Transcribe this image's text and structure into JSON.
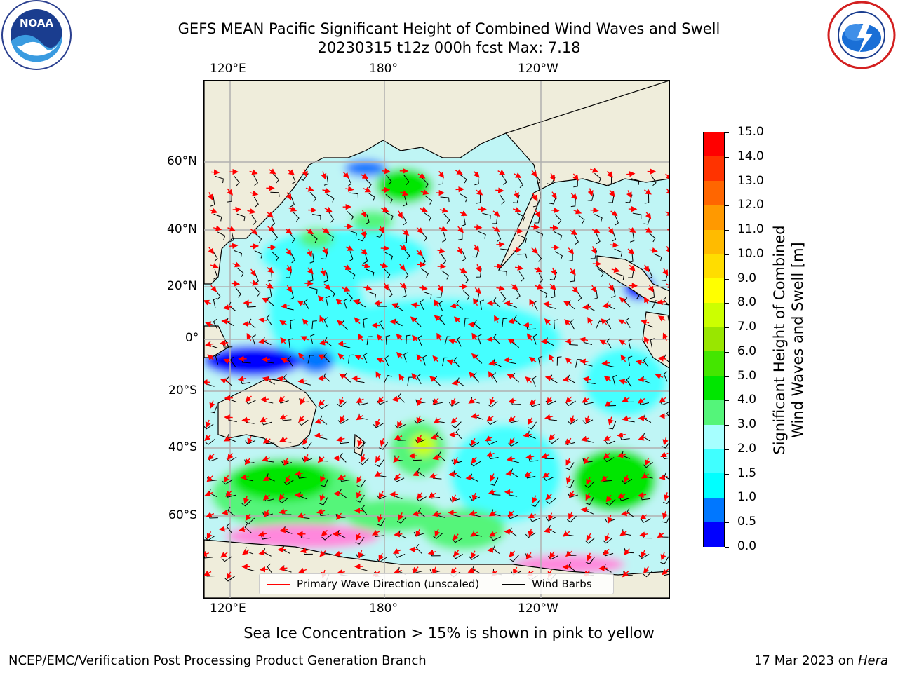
{
  "title": {
    "line1": "GEFS MEAN Pacific Significant Height of Combined Wind Waves and Swell",
    "line2": "20230315 t12z 000h fcst   Max: 7.18"
  },
  "logos": {
    "left": "noaa-logo",
    "right": "national-weather-service-logo"
  },
  "map": {
    "top_lon_labels": [
      "120°E",
      "180°",
      "120°W"
    ],
    "bottom_lon_labels": [
      "120°E",
      "180°",
      "120°W"
    ],
    "lat_labels": [
      "60°N",
      "40°N",
      "20°N",
      "0°",
      "20°S",
      "40°S",
      "60°S"
    ],
    "colors": {
      "land": "#efeddb",
      "ocean_base": "#bff5f5",
      "wave_line": "#ff0000",
      "wind_barb": "#000000"
    }
  },
  "legend": {
    "items": [
      {
        "label": "Primary Wave Direction (unscaled)",
        "color": "#ff0000"
      },
      {
        "label": "Wind Barbs",
        "color": "#000000"
      }
    ]
  },
  "colorbar": {
    "label_line1": "Significant Height of Combined",
    "label_line2": "Wind Waves and Swell [m]",
    "ticks": [
      "0.0",
      "0.5",
      "1.0",
      "1.5",
      "2.0",
      "3.0",
      "4.0",
      "5.0",
      "6.0",
      "7.0",
      "8.0",
      "9.0",
      "10.0",
      "11.0",
      "12.0",
      "13.0",
      "14.0",
      "15.0"
    ],
    "colors": [
      "#0000ff",
      "#0077ff",
      "#00ffff",
      "#40ffff",
      "#a6ffff",
      "#54f57a",
      "#00e600",
      "#44e600",
      "#99e600",
      "#ccff00",
      "#ffff00",
      "#ffdd00",
      "#ffbb00",
      "#ff9900",
      "#ff6600",
      "#ff3300",
      "#ff0000"
    ]
  },
  "caption": "Sea Ice Concentration > 15% is shown in pink to yellow",
  "footer": {
    "left": "NCEP/EMC/Verification Post Processing Product Generation Branch",
    "right_prefix": "17 Mar 2023 on ",
    "right_machine": "Hera"
  }
}
